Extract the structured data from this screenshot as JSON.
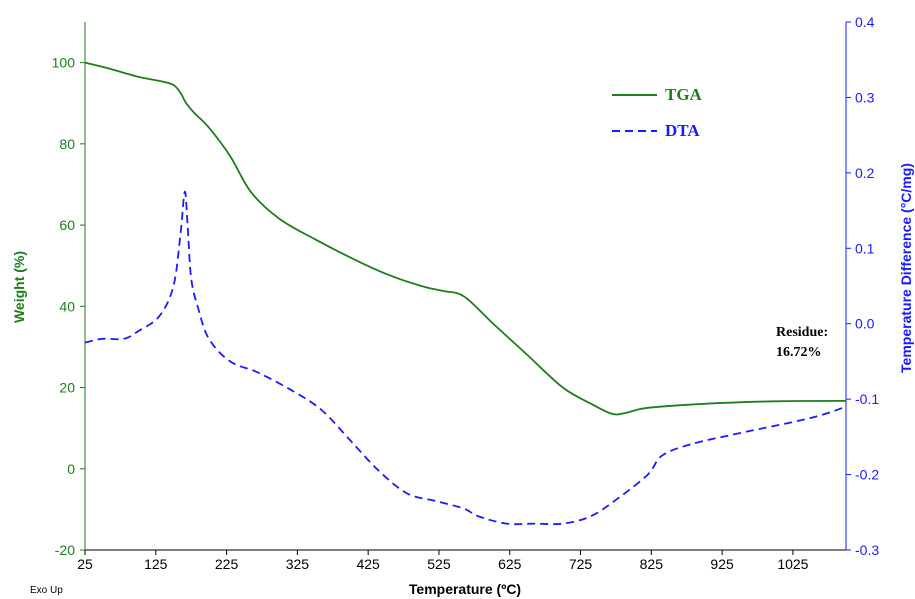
{
  "chart_data": {
    "type": "line",
    "xlabel": "Temperature (ºC)",
    "ylabel_left": "Weight (%)",
    "ylabel_right": "Temperature Difference (°C/mg)",
    "x_ticks": [
      25,
      125,
      225,
      325,
      425,
      525,
      625,
      725,
      825,
      925,
      1025
    ],
    "xlim": [
      25,
      1100
    ],
    "ylim_left": [
      -20,
      110
    ],
    "ylim_right": [
      -0.3,
      0.4
    ],
    "y_ticks_left": [
      100,
      80,
      60,
      40,
      20,
      0,
      -20
    ],
    "y_ticks_right": [
      "0.4",
      "0.3",
      "0.2",
      "0.1",
      "0.0",
      "-0.1",
      "-0.2",
      "-0.3"
    ],
    "grid": false,
    "legend_position": "top-right",
    "series": [
      {
        "name": "TGA",
        "axis": "left",
        "color": "#1e7d1e",
        "style": "solid",
        "x": [
          25,
          60,
          100,
          130,
          150,
          160,
          168,
          180,
          200,
          230,
          260,
          300,
          350,
          400,
          450,
          500,
          530,
          560,
          600,
          650,
          700,
          740,
          770,
          790,
          820,
          900,
          1000,
          1100
        ],
        "y": [
          100,
          98.5,
          96.5,
          95.5,
          94.5,
          92.5,
          90,
          87.5,
          84,
          77,
          68,
          61.5,
          56.5,
          52,
          48,
          45,
          43.8,
          42.5,
          36,
          28,
          20,
          16,
          13.5,
          13.8,
          15,
          16,
          16.6,
          16.72
        ]
      },
      {
        "name": "DTA",
        "axis": "right",
        "color": "#1a1aff",
        "style": "dashed",
        "x": [
          25,
          50,
          80,
          100,
          130,
          150,
          160,
          166,
          170,
          175,
          185,
          200,
          230,
          270,
          320,
          360,
          400,
          440,
          480,
          520,
          560,
          580,
          620,
          660,
          700,
          740,
          780,
          820,
          840,
          880,
          950,
          1050,
          1100
        ],
        "y": [
          -0.025,
          -0.02,
          -0.02,
          -0.01,
          0.01,
          0.05,
          0.12,
          0.175,
          0.13,
          0.06,
          0.02,
          -0.02,
          -0.05,
          -0.065,
          -0.09,
          -0.115,
          -0.155,
          -0.195,
          -0.225,
          -0.235,
          -0.245,
          -0.255,
          -0.265,
          -0.265,
          -0.265,
          -0.255,
          -0.23,
          -0.2,
          -0.175,
          -0.16,
          -0.145,
          -0.125,
          -0.11
        ]
      }
    ],
    "annotations": [
      {
        "text_line1": "Residue:",
        "text_line2": "16.72%",
        "x": 1060,
        "y": 16.72
      }
    ],
    "corner_note": "Exo Up"
  }
}
